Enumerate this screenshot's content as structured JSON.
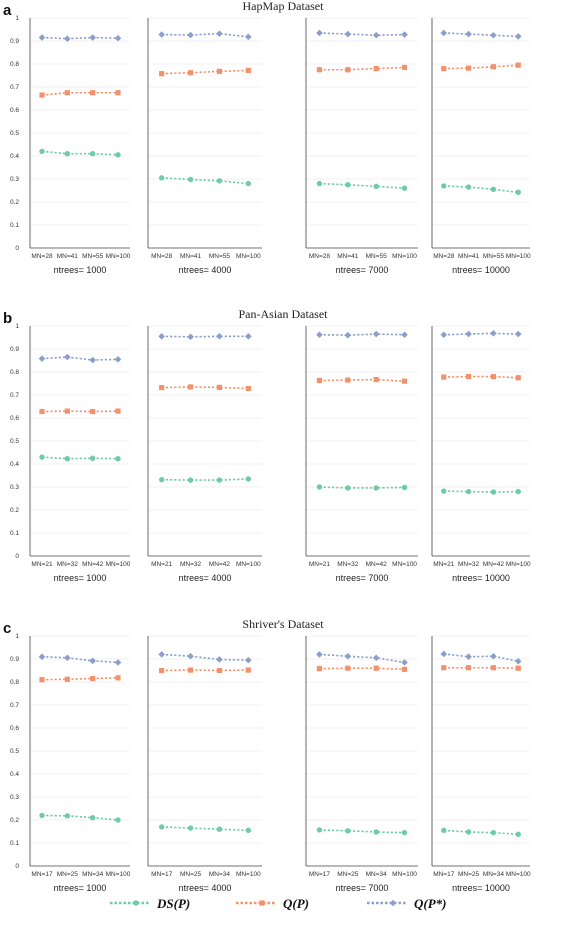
{
  "colors": {
    "ds": "#6dcba5",
    "q": "#f2916b",
    "qstar": "#8c9ecb"
  },
  "legend": [
    {
      "series": "ds",
      "label": "DS(P)"
    },
    {
      "series": "q",
      "label": "Q(P)"
    },
    {
      "series": "qstar",
      "label": "Q(P*)"
    }
  ],
  "chart_data": [
    {
      "type": "line",
      "panel_label": "a",
      "title": "HapMap Dataset",
      "ylim": [
        0,
        1
      ],
      "yticks": [
        "0",
        "0.1",
        "0.2",
        "0.3",
        "0.4",
        "0.5",
        "0.6",
        "0.7",
        "0.8",
        "0.9",
        "1"
      ],
      "grid": true,
      "subplots": [
        {
          "label": "ntrees= 1000",
          "categories": [
            "MN=28",
            "MN=41",
            "MN=55",
            "MN=100"
          ],
          "series": {
            "ds": [
              0.42,
              0.41,
              0.41,
              0.405
            ],
            "q": [
              0.665,
              0.675,
              0.675,
              0.675
            ],
            "qstar": [
              0.915,
              0.91,
              0.915,
              0.912
            ]
          }
        },
        {
          "label": "ntrees= 4000",
          "categories": [
            "MN=28",
            "MN=41",
            "MN=55",
            "MN=100"
          ],
          "series": {
            "ds": [
              0.305,
              0.298,
              0.292,
              0.28
            ],
            "q": [
              0.758,
              0.762,
              0.768,
              0.772
            ],
            "qstar": [
              0.928,
              0.926,
              0.932,
              0.918
            ]
          }
        },
        {
          "label": "ntrees= 7000",
          "categories": [
            "MN=28",
            "MN=41",
            "MN=55",
            "MN=100"
          ],
          "series": {
            "ds": [
              0.28,
              0.275,
              0.268,
              0.26
            ],
            "q": [
              0.775,
              0.775,
              0.78,
              0.785
            ],
            "qstar": [
              0.935,
              0.93,
              0.925,
              0.928
            ]
          }
        },
        {
          "label": "ntrees= 10000",
          "categories": [
            "MN=28",
            "MN=41",
            "MN=55",
            "MN=100"
          ],
          "series": {
            "ds": [
              0.27,
              0.265,
              0.255,
              0.242
            ],
            "q": [
              0.78,
              0.782,
              0.788,
              0.795
            ],
            "qstar": [
              0.935,
              0.93,
              0.925,
              0.92
            ]
          }
        }
      ]
    },
    {
      "type": "line",
      "panel_label": "b",
      "title": "Pan-Asian Dataset",
      "ylim": [
        0,
        1
      ],
      "yticks": [
        "0",
        "0.1",
        "0.2",
        "0.3",
        "0.4",
        "0.5",
        "0.6",
        "0.7",
        "0.8",
        "0.9",
        "1"
      ],
      "grid": true,
      "subplots": [
        {
          "label": "ntrees= 1000",
          "categories": [
            "MN=21",
            "MN=32",
            "MN=42",
            "MN=100"
          ],
          "series": {
            "ds": [
              0.43,
              0.423,
              0.425,
              0.423
            ],
            "q": [
              0.628,
              0.63,
              0.628,
              0.63
            ],
            "qstar": [
              0.858,
              0.865,
              0.852,
              0.855
            ]
          }
        },
        {
          "label": "ntrees= 4000",
          "categories": [
            "MN=21",
            "MN=32",
            "MN=42",
            "MN=100"
          ],
          "series": {
            "ds": [
              0.332,
              0.33,
              0.33,
              0.335
            ],
            "q": [
              0.732,
              0.735,
              0.733,
              0.728
            ],
            "qstar": [
              0.955,
              0.953,
              0.955,
              0.955
            ]
          }
        },
        {
          "label": "ntrees= 7000",
          "categories": [
            "MN=21",
            "MN=32",
            "MN=42",
            "MN=100"
          ],
          "series": {
            "ds": [
              0.3,
              0.296,
              0.296,
              0.298
            ],
            "q": [
              0.763,
              0.765,
              0.767,
              0.76
            ],
            "qstar": [
              0.962,
              0.96,
              0.965,
              0.962
            ]
          }
        },
        {
          "label": "ntrees= 10000",
          "categories": [
            "MN=21",
            "MN=32",
            "MN=42",
            "MN=100"
          ],
          "series": {
            "ds": [
              0.282,
              0.28,
              0.278,
              0.28
            ],
            "q": [
              0.778,
              0.78,
              0.78,
              0.775
            ],
            "qstar": [
              0.962,
              0.965,
              0.968,
              0.965
            ]
          }
        }
      ]
    },
    {
      "type": "line",
      "panel_label": "c",
      "title": "Shriver's Dataset",
      "ylim": [
        0,
        1
      ],
      "yticks": [
        "0",
        "0.1",
        "0.2",
        "0.3",
        "0.4",
        "0.5",
        "0.6",
        "0.7",
        "0.8",
        "0.9",
        "1"
      ],
      "grid": true,
      "subplots": [
        {
          "label": "ntrees= 1000",
          "categories": [
            "MN=17",
            "MN=25",
            "MN=34",
            "MN=100"
          ],
          "series": {
            "ds": [
              0.22,
              0.218,
              0.21,
              0.2
            ],
            "q": [
              0.81,
              0.812,
              0.815,
              0.818
            ],
            "qstar": [
              0.91,
              0.905,
              0.892,
              0.885
            ]
          }
        },
        {
          "label": "ntrees= 4000",
          "categories": [
            "MN=17",
            "MN=25",
            "MN=34",
            "MN=100"
          ],
          "series": {
            "ds": [
              0.17,
              0.165,
              0.16,
              0.155
            ],
            "q": [
              0.85,
              0.852,
              0.85,
              0.852
            ],
            "qstar": [
              0.92,
              0.912,
              0.898,
              0.895
            ]
          }
        },
        {
          "label": "ntrees= 7000",
          "categories": [
            "MN=17",
            "MN=25",
            "MN=34",
            "MN=100"
          ],
          "series": {
            "ds": [
              0.157,
              0.153,
              0.148,
              0.145
            ],
            "q": [
              0.858,
              0.86,
              0.86,
              0.855
            ],
            "qstar": [
              0.92,
              0.912,
              0.905,
              0.885
            ]
          }
        },
        {
          "label": "ntrees= 10000",
          "categories": [
            "MN=17",
            "MN=25",
            "MN=34",
            "MN=100"
          ],
          "series": {
            "ds": [
              0.155,
              0.148,
              0.145,
              0.138
            ],
            "q": [
              0.862,
              0.862,
              0.862,
              0.86
            ],
            "qstar": [
              0.922,
              0.91,
              0.912,
              0.89
            ]
          }
        }
      ]
    }
  ]
}
